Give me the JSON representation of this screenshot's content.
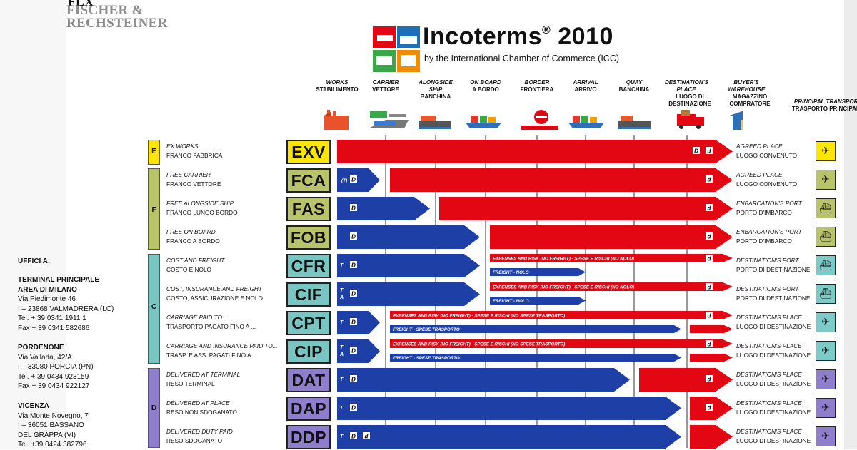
{
  "colors": {
    "red": "#e30613",
    "blue": "#1d3fa6",
    "e": "#ffe600",
    "f": "#b9c36a",
    "c": "#78c5c2",
    "d": "#8e7ecb",
    "t_e": "#ffe600",
    "t_f": "#b9c36a",
    "t_c": "#7dcbc8",
    "t_d": "#8e7ecb"
  },
  "logo": {
    "line1": "FLX",
    "line2": "FISCHER &",
    "line3": "RECHSTEINER"
  },
  "header": {
    "title": "Incoterms",
    "reg": "®",
    "year": "2010",
    "subtitle": "by the International Chamber of Commerce (ICC)"
  },
  "columns": [
    {
      "en": "WORKS",
      "it": "STABILIMENTO"
    },
    {
      "en": "CARRIER",
      "it": "VETTORE"
    },
    {
      "en": "ALONGSIDE SHIP",
      "it": "BANCHINA"
    },
    {
      "en": "ON BOARD",
      "it": "A BORDO"
    },
    {
      "en": "BORDER",
      "it": "FRONTIERA"
    },
    {
      "en": "ARRIVAL",
      "it": "ARRIVO"
    },
    {
      "en": "QUAY",
      "it": "BANCHINA"
    },
    {
      "en": "DESTINATION'S PLACE",
      "it": "LUOGO DI DESTINAZIONE"
    },
    {
      "en": "BUYER'S WAREHOUSE",
      "it": "MAGAZZINO COMPRATORE"
    }
  ],
  "transport_header": {
    "en": "PRINCIPAL TRANSPORT",
    "it": "TRASPORTO PRINCIPALE"
  },
  "groups": [
    {
      "letter": "E"
    },
    {
      "letter": "F"
    },
    {
      "letter": "C"
    },
    {
      "letter": "D"
    }
  ],
  "rows": [
    {
      "code": "EXV",
      "en": "EX WORKS",
      "it": "FRANCO FABBRICA",
      "dest_en": "AGREED PLACE",
      "dest_it": "LUOGO CONVENUTO",
      "group": "E"
    },
    {
      "code": "FCA",
      "en": "FREE CARRIER",
      "it": "FRANCO VETTORE",
      "dest_en": "AGREED PLACE",
      "dest_it": "LUOGO CONVENUTO",
      "group": "F"
    },
    {
      "code": "FAS",
      "en": "FREE ALONGSIDE SHIP",
      "it": "FRANCO LUNGO BORDO",
      "dest_en": "ENBARCATION'S PORT",
      "dest_it": "PORTO D'IMBARCO",
      "group": "F"
    },
    {
      "code": "FOB",
      "en": "FREE ON BOARD",
      "it": "FRANCO A BORDO",
      "dest_en": "ENBARCATION'S PORT",
      "dest_it": "PORTO D'IMBARCO",
      "group": "F"
    },
    {
      "code": "CFR",
      "en": "COST AND FREIGHT",
      "it": "COSTO E NOLO",
      "dest_en": "DESTINATION'S PORT",
      "dest_it": "PORTO DI DESTINAZIONE",
      "group": "C"
    },
    {
      "code": "CIF",
      "en": "COST, INSURANCE AND FREIGHT",
      "it": "COSTO, ASSICURAZIONE E NOLO",
      "dest_en": "DESTINATION'S PORT",
      "dest_it": "PORTO DI DESTINAZIONE",
      "group": "C"
    },
    {
      "code": "CPT",
      "en": "CARRIAGE PAID TO ...",
      "it": "TRASPORTO PAGATO FINO A ...",
      "dest_en": "DESTINATION'S PLACE",
      "dest_it": "LUOGO DI DESTINAZIONE",
      "group": "C"
    },
    {
      "code": "CIP",
      "en": "CARRIAGE AND INSURANCE PAID TO...",
      "it": "TRASP. E ASS. PAGATI FINO A...",
      "dest_en": "DESTINATION'S PLACE",
      "dest_it": "LUOGO DI DESTINAZIONE",
      "group": "C"
    },
    {
      "code": "DAT",
      "en": "DELIVERED AT TERMINAL",
      "it": "RESO TERMINAL",
      "dest_en": "DESTINATION'S PLACE",
      "dest_it": "LUOGO DI DESTINAZIONE",
      "group": "D"
    },
    {
      "code": "DAP",
      "en": "DELIVERED AT PLACE",
      "it": "RESO NON SDOGANATO",
      "dest_en": "DESTINATION'S PLACE",
      "dest_it": "LUOGO DI DESTINAZIONE",
      "group": "D"
    },
    {
      "code": "DDP",
      "en": "DELIVERED DUTY PAID",
      "it": "RESO SDOGANATO",
      "dest_en": "DESTINATION'S PLACE",
      "dest_it": "LUOGO DI DESTINAZIONE",
      "group": "D"
    }
  ],
  "bar_labels": {
    "risk_c": "EXPENSES AND RISK (NO FREIGHT) - SPESE E RISCHI (NO NOLO)",
    "risk_cp": "EXPENSES AND RISK (NO FREIGHT) - SPESE E RISCHI (NO SPESE TRASPORTO)",
    "freight_c": "FREIGHT - NOLO",
    "freight_cp": "FREIGHT - SPESE TRASPORTO"
  },
  "markers": {
    "D": "D",
    "d": "d",
    "T": "T",
    "A": "A",
    "TM": "(T)"
  },
  "offices": {
    "title": "UFFICI A:",
    "milano": [
      "TERMINAL PRINCIPALE",
      "AREA DI MILANO",
      "Via Piedimonte 46",
      "I – 23868 VALMADRERA (LC)",
      "Tel. + 39 0341 1911 1",
      "Fax + 39 0341 582686"
    ],
    "pordenone": [
      "PORDENONE",
      "Via Vallada, 42/A",
      "I – 33080 PORCIA (PN)",
      "Tel. + 39 0434 923159",
      "Fax + 39 0434 922127"
    ],
    "vicenza": [
      "VICENZA",
      "Via Monte Novegno, 7",
      "I – 36051 BASSANO",
      "DEL GRAPPA (VI)",
      "Tel. +39 0424 382796"
    ]
  },
  "transport_icons": [
    "truck-plane",
    "truck-plane",
    "ship",
    "ship",
    "ship",
    "ship",
    "truck-plane",
    "truck-plane",
    "truck-plane",
    "truck-plane",
    "truck-plane"
  ]
}
